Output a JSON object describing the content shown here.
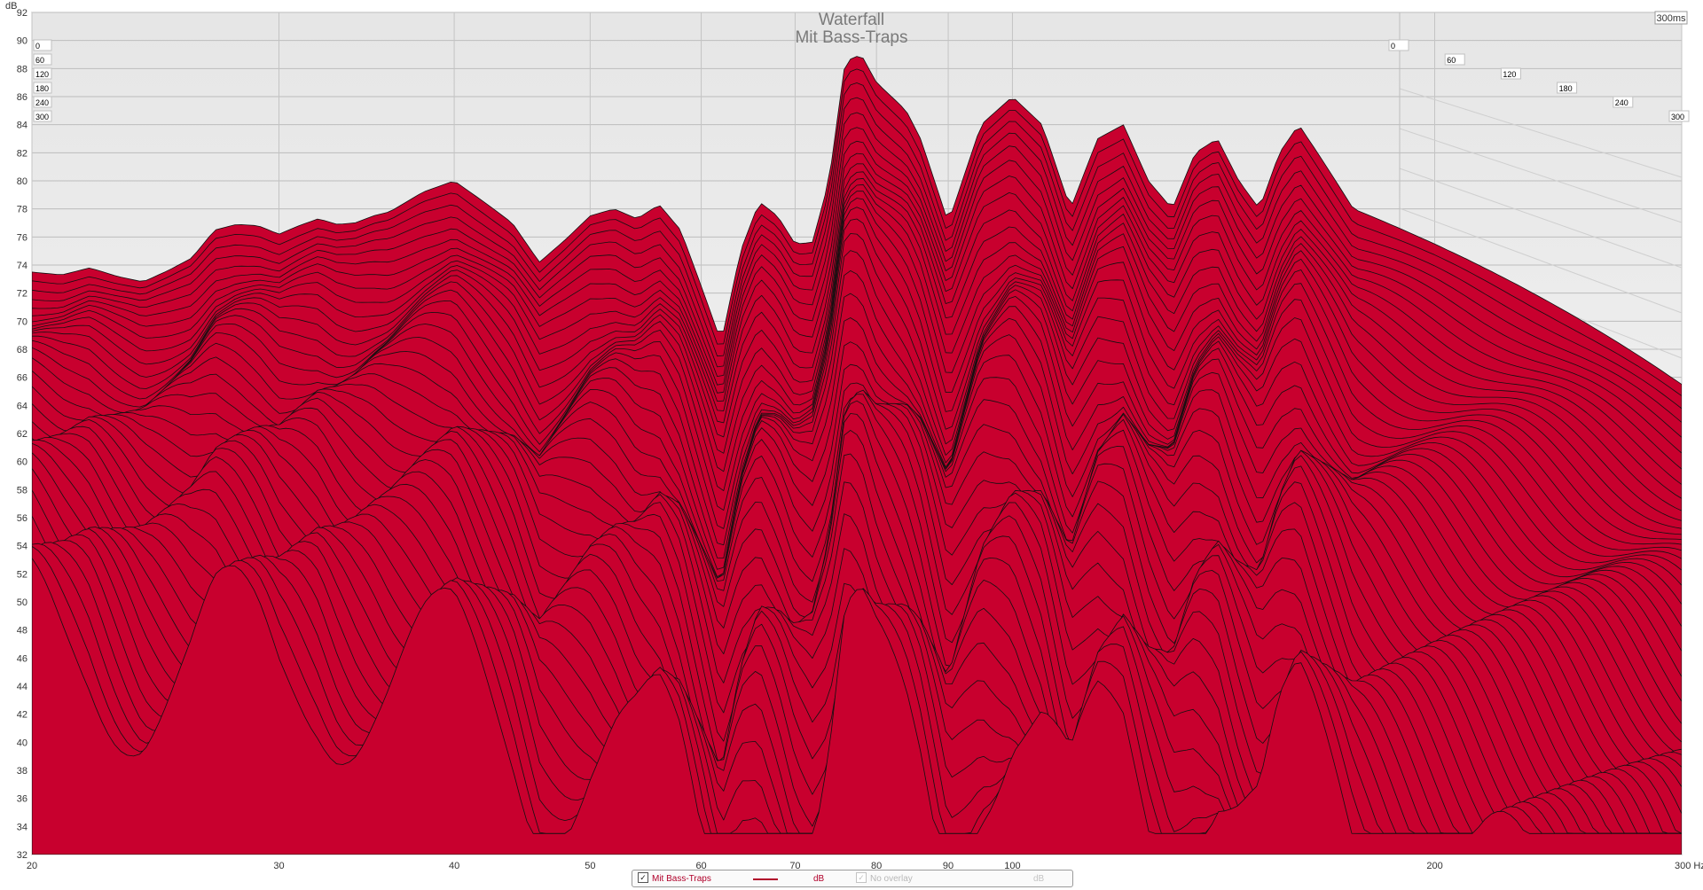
{
  "chart_data": {
    "type": "area",
    "style": "3d-waterfall",
    "title": "Waterfall",
    "subtitle": "Mit Bass-Traps",
    "ylabel": "dB",
    "xunit": "Hz",
    "xscale": "log",
    "xlim": [
      20,
      300
    ],
    "ylim": [
      32,
      92
    ],
    "ytick_step": 2,
    "xticks": [
      20,
      30,
      40,
      50,
      60,
      70,
      80,
      90,
      100,
      200,
      300
    ],
    "xtick_labels": [
      "20",
      "30",
      "40",
      "50",
      "60",
      "70",
      "80",
      "90",
      "100",
      "200",
      "300 Hz"
    ],
    "time_axis_label": "300ms",
    "time_ticks": [
      0,
      60,
      120,
      180,
      240,
      300
    ],
    "time_tick_labels": [
      "0",
      "60",
      "120",
      "180",
      "240",
      "300"
    ],
    "fill_color": "#c8002e",
    "line_color": "#111111",
    "slices": 50,
    "grid": true,
    "series": [
      {
        "name": "Mit Bass-Traps",
        "time_ms": 0,
        "x": [
          20,
          21,
          22,
          23,
          24,
          25,
          26,
          27,
          28,
          29,
          30,
          31,
          32,
          33,
          34,
          35,
          36,
          38,
          40,
          42,
          44,
          46,
          48,
          50,
          52,
          54,
          56,
          58,
          60,
          62,
          64,
          66,
          68,
          70,
          72,
          74,
          76,
          78,
          80,
          82,
          84,
          86,
          88,
          90,
          95,
          100,
          105,
          110,
          115,
          120,
          125,
          130,
          135,
          140,
          145,
          150,
          155,
          160,
          165,
          170,
          175,
          180,
          190,
          200,
          210,
          220,
          230,
          240,
          250,
          260,
          270,
          280,
          290,
          300
        ],
        "y": [
          73.5,
          73.3,
          73.8,
          73.2,
          72.8,
          73.6,
          74.5,
          76.5,
          76.9,
          76.8,
          76.2,
          76.8,
          77.3,
          76.9,
          77.0,
          77.5,
          77.8,
          79.2,
          80.0,
          78.5,
          77.0,
          74.2,
          75.8,
          77.5,
          78.0,
          77.3,
          78.3,
          76.5,
          72.5,
          68.5,
          75.0,
          78.5,
          77.5,
          75.5,
          75.6,
          80.0,
          88.5,
          89.0,
          87.0,
          86.0,
          85.0,
          83.0,
          80.0,
          77.0,
          84.0,
          86.0,
          84.0,
          78.0,
          83.0,
          84.0,
          80.0,
          78.0,
          82.0,
          83.0,
          80.0,
          78.0,
          82.0,
          84.0,
          82.0,
          80.0,
          78.0,
          77.5,
          76.5,
          75.5,
          74.5,
          73.5,
          72.5,
          71.5,
          70.5,
          69.5,
          68.5,
          67.5,
          66.5,
          65.5
        ]
      }
    ]
  },
  "legend": {
    "series_label": "Mit Bass-Traps",
    "series_unit": "dB",
    "overlay_label": "No overlay",
    "overlay_unit": "dB",
    "check_mark": "✓"
  }
}
